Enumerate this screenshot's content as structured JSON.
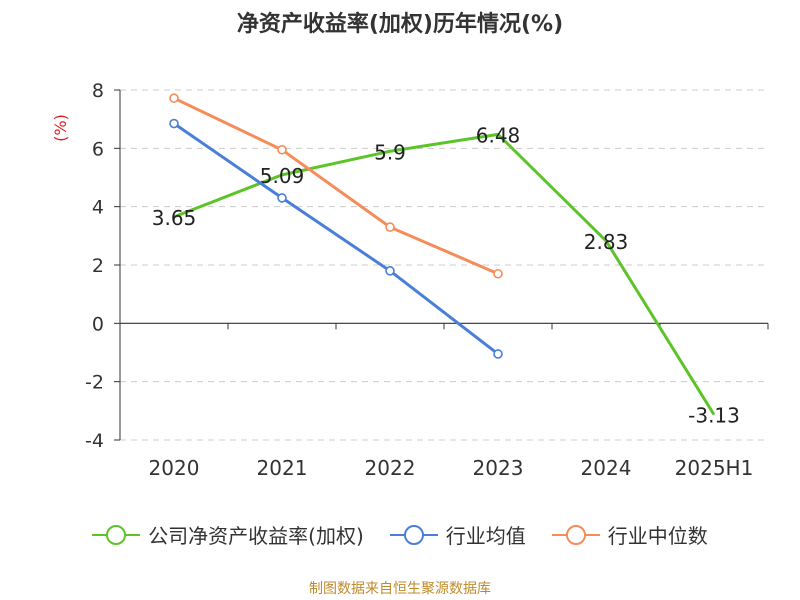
{
  "title": "净资产收益率(加权)历年情况(%)",
  "source_text": "制图数据来自恒生聚源数据库",
  "colors": {
    "source": "#c08a2a",
    "yunit": "#e02020",
    "grid": "#cccccc",
    "axis": "#333333"
  },
  "chart_data": {
    "type": "line",
    "categories": [
      "2020",
      "2021",
      "2022",
      "2023",
      "2024",
      "2025H1"
    ],
    "y_unit_label": "(%)",
    "ylim": [
      -4,
      8
    ],
    "yticks": [
      -4,
      -2,
      0,
      2,
      4,
      6,
      8
    ],
    "grid": true,
    "legend_position": "bottom",
    "series": [
      {
        "name": "公司净资产收益率(加权)",
        "color": "#5cc427",
        "values": [
          3.65,
          5.09,
          5.9,
          6.48,
          2.83,
          -3.13
        ],
        "labels": [
          "3.65",
          "5.09",
          "5.9",
          "6.48",
          "2.83",
          "-3.13"
        ],
        "show_points": false
      },
      {
        "name": "行业均值",
        "color": "#4a7fd8",
        "values": [
          6.85,
          4.3,
          1.8,
          -1.05,
          null,
          null
        ],
        "show_points": true
      },
      {
        "name": "行业中位数",
        "color": "#f58c5a",
        "values": [
          7.72,
          5.95,
          3.3,
          1.7,
          null,
          null
        ],
        "show_points": true
      }
    ]
  }
}
